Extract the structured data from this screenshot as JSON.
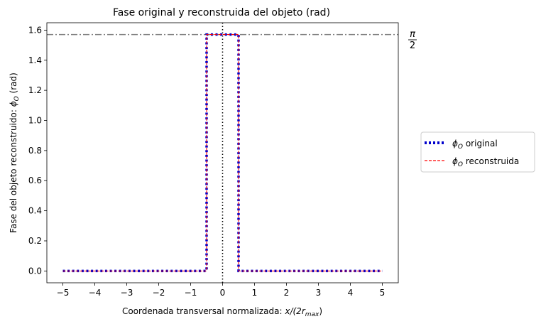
{
  "chart_data": {
    "type": "line",
    "title": "Fase original y reconstruida del objeto (rad)",
    "xlabel_prefix": "Coordenada transversal normalizada: ",
    "xlabel_math": "x/(2r",
    "xlabel_sub": "max",
    "xlabel_close": ")",
    "ylabel_prefix": "Fase del objeto reconstruido: ",
    "ylabel_phi": "ϕ",
    "ylabel_sub": "O",
    "ylabel_suffix": " (rad)",
    "xlim": [
      -5.5,
      5.5
    ],
    "ylim": [
      -0.0785,
      1.649
    ],
    "xticks": [
      -5,
      -4,
      -3,
      -2,
      -1,
      0,
      1,
      2,
      3,
      4,
      5
    ],
    "xtick_labels": [
      "−5",
      "−4",
      "−3",
      "−2",
      "−1",
      "0",
      "1",
      "2",
      "3",
      "4",
      "5"
    ],
    "yticks": [
      0.0,
      0.2,
      0.4,
      0.6,
      0.8,
      1.0,
      1.2,
      1.4,
      1.6
    ],
    "ytick_labels": [
      "0.0",
      "0.2",
      "0.4",
      "0.6",
      "0.8",
      "1.0",
      "1.2",
      "1.4",
      "1.6"
    ],
    "reference_line": {
      "y": 1.5708,
      "label_num": "π",
      "label_den": "2",
      "color": "#808080",
      "style": "dashdot"
    },
    "center_line": {
      "x": 0,
      "color": "#000000",
      "style": "dotted"
    },
    "series": [
      {
        "name_phi": "ϕ",
        "name_sub": "O",
        "name_text": " original",
        "color": "#0000cc",
        "style": "dotted",
        "x": [
          -5,
          -0.5,
          -0.5,
          0.5,
          0.5,
          5
        ],
        "y": [
          0,
          0,
          1.5708,
          1.5708,
          0,
          0
        ]
      },
      {
        "name_phi": "ϕ",
        "name_sub": "O",
        "name_text": " reconstruida",
        "color": "#ff0000",
        "style": "dashed",
        "x": [
          -5,
          -0.5,
          -0.5,
          0.5,
          0.5,
          5
        ],
        "y": [
          0,
          0,
          1.5708,
          1.5708,
          0,
          0
        ]
      }
    ],
    "legend_position": "outside-right",
    "grid": false
  }
}
